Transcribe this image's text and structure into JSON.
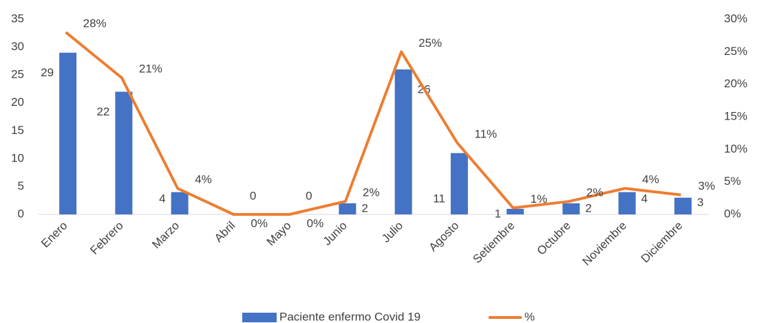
{
  "chart_data": {
    "type": "bar_line",
    "categories": [
      "Enero",
      "Febrero",
      "Marzo",
      "Abril",
      "Mayo",
      "Junio",
      "Julio",
      "Agosto",
      "Setiembre",
      "Octubre",
      "Noviembre",
      "Diciembre"
    ],
    "series": [
      {
        "name": "Paciente enfermo Covid 19",
        "type": "bar",
        "color": "#4472c4",
        "values": [
          29,
          22,
          4,
          0,
          0,
          2,
          26,
          11,
          1,
          2,
          4,
          3
        ]
      },
      {
        "name": "%",
        "type": "line",
        "axis": "y2",
        "color": "#ed7d31",
        "values": [
          28,
          21,
          4,
          0,
          0,
          2,
          25,
          11,
          1,
          2,
          4,
          3
        ],
        "value_labels": [
          "28%",
          "21%",
          "4%",
          "0%",
          "0%",
          "2%",
          "25%",
          "11%",
          "1%",
          "2%",
          "4%",
          "3%"
        ]
      }
    ],
    "ylim": [
      0,
      35
    ],
    "yticks": [
      0,
      5,
      10,
      15,
      20,
      25,
      30,
      35
    ],
    "y2lim": [
      0,
      30
    ],
    "y2ticks": [
      {
        "value": 0,
        "label": "0%"
      },
      {
        "value": 5,
        "label": "5%"
      },
      {
        "value": 10,
        "label": "10%"
      },
      {
        "value": 15,
        "label": "15%"
      },
      {
        "value": 20,
        "label": "20%"
      },
      {
        "value": 25,
        "label": "25%"
      },
      {
        "value": 30,
        "label": "30%"
      }
    ],
    "legend": "bottom"
  }
}
